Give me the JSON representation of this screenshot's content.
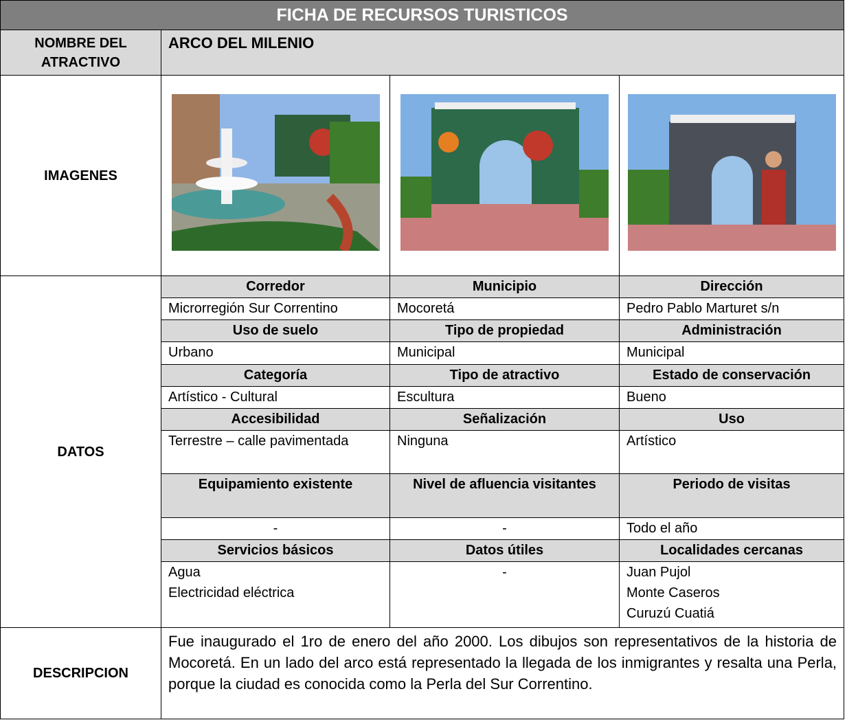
{
  "header": {
    "title": "FICHA DE RECURSOS TURISTICOS"
  },
  "name": {
    "label": "NOMBRE DEL ATRACTIVO",
    "value": "ARCO DEL MILENIO"
  },
  "images": {
    "label": "IMAGENES"
  },
  "datos": {
    "label": "DATOS",
    "groups": [
      {
        "headers": [
          "Corredor",
          "Municipio",
          "Dirección"
        ],
        "values": [
          "Microrregión Sur Correntino",
          "Mocoretá",
          "Pedro Pablo Marturet s/n"
        ]
      },
      {
        "headers": [
          "Uso de suelo",
          "Tipo de propiedad",
          "Administración"
        ],
        "values": [
          "Urbano",
          "Municipal",
          "Municipal"
        ]
      },
      {
        "headers": [
          "Categoría",
          "Tipo de atractivo",
          "Estado de conservación"
        ],
        "values": [
          "Artístico - Cultural",
          "Escultura",
          "Bueno"
        ]
      },
      {
        "headers": [
          "Accesibilidad",
          "Señalización",
          "Uso"
        ],
        "values": [
          "Terrestre – calle pavimentada",
          "Ninguna",
          "Artístico"
        ]
      },
      {
        "headers": [
          "Equipamiento existente",
          "Nivel de afluencia visitantes",
          "Periodo de visitas"
        ],
        "values": [
          "-",
          "-",
          "Todo el año"
        ]
      },
      {
        "headers": [
          "Servicios básicos",
          "Datos útiles",
          "Localidades cercanas"
        ],
        "values": [
          [
            "Agua",
            "Electricidad eléctrica"
          ],
          [
            "-"
          ],
          [
            "Juan Pujol",
            "Monte Caseros",
            "Curuzú Cuatiá"
          ]
        ]
      }
    ]
  },
  "description": {
    "label": "DESCRIPCION",
    "text": "Fue inaugurado el 1ro de enero del año 2000. Los dibujos son representativos de la historia de Mocoretá. En un lado del arco está representado la llegada de los inmigrantes y resalta una Perla, porque la ciudad es conocida como la Perla del Sur Correntino."
  }
}
